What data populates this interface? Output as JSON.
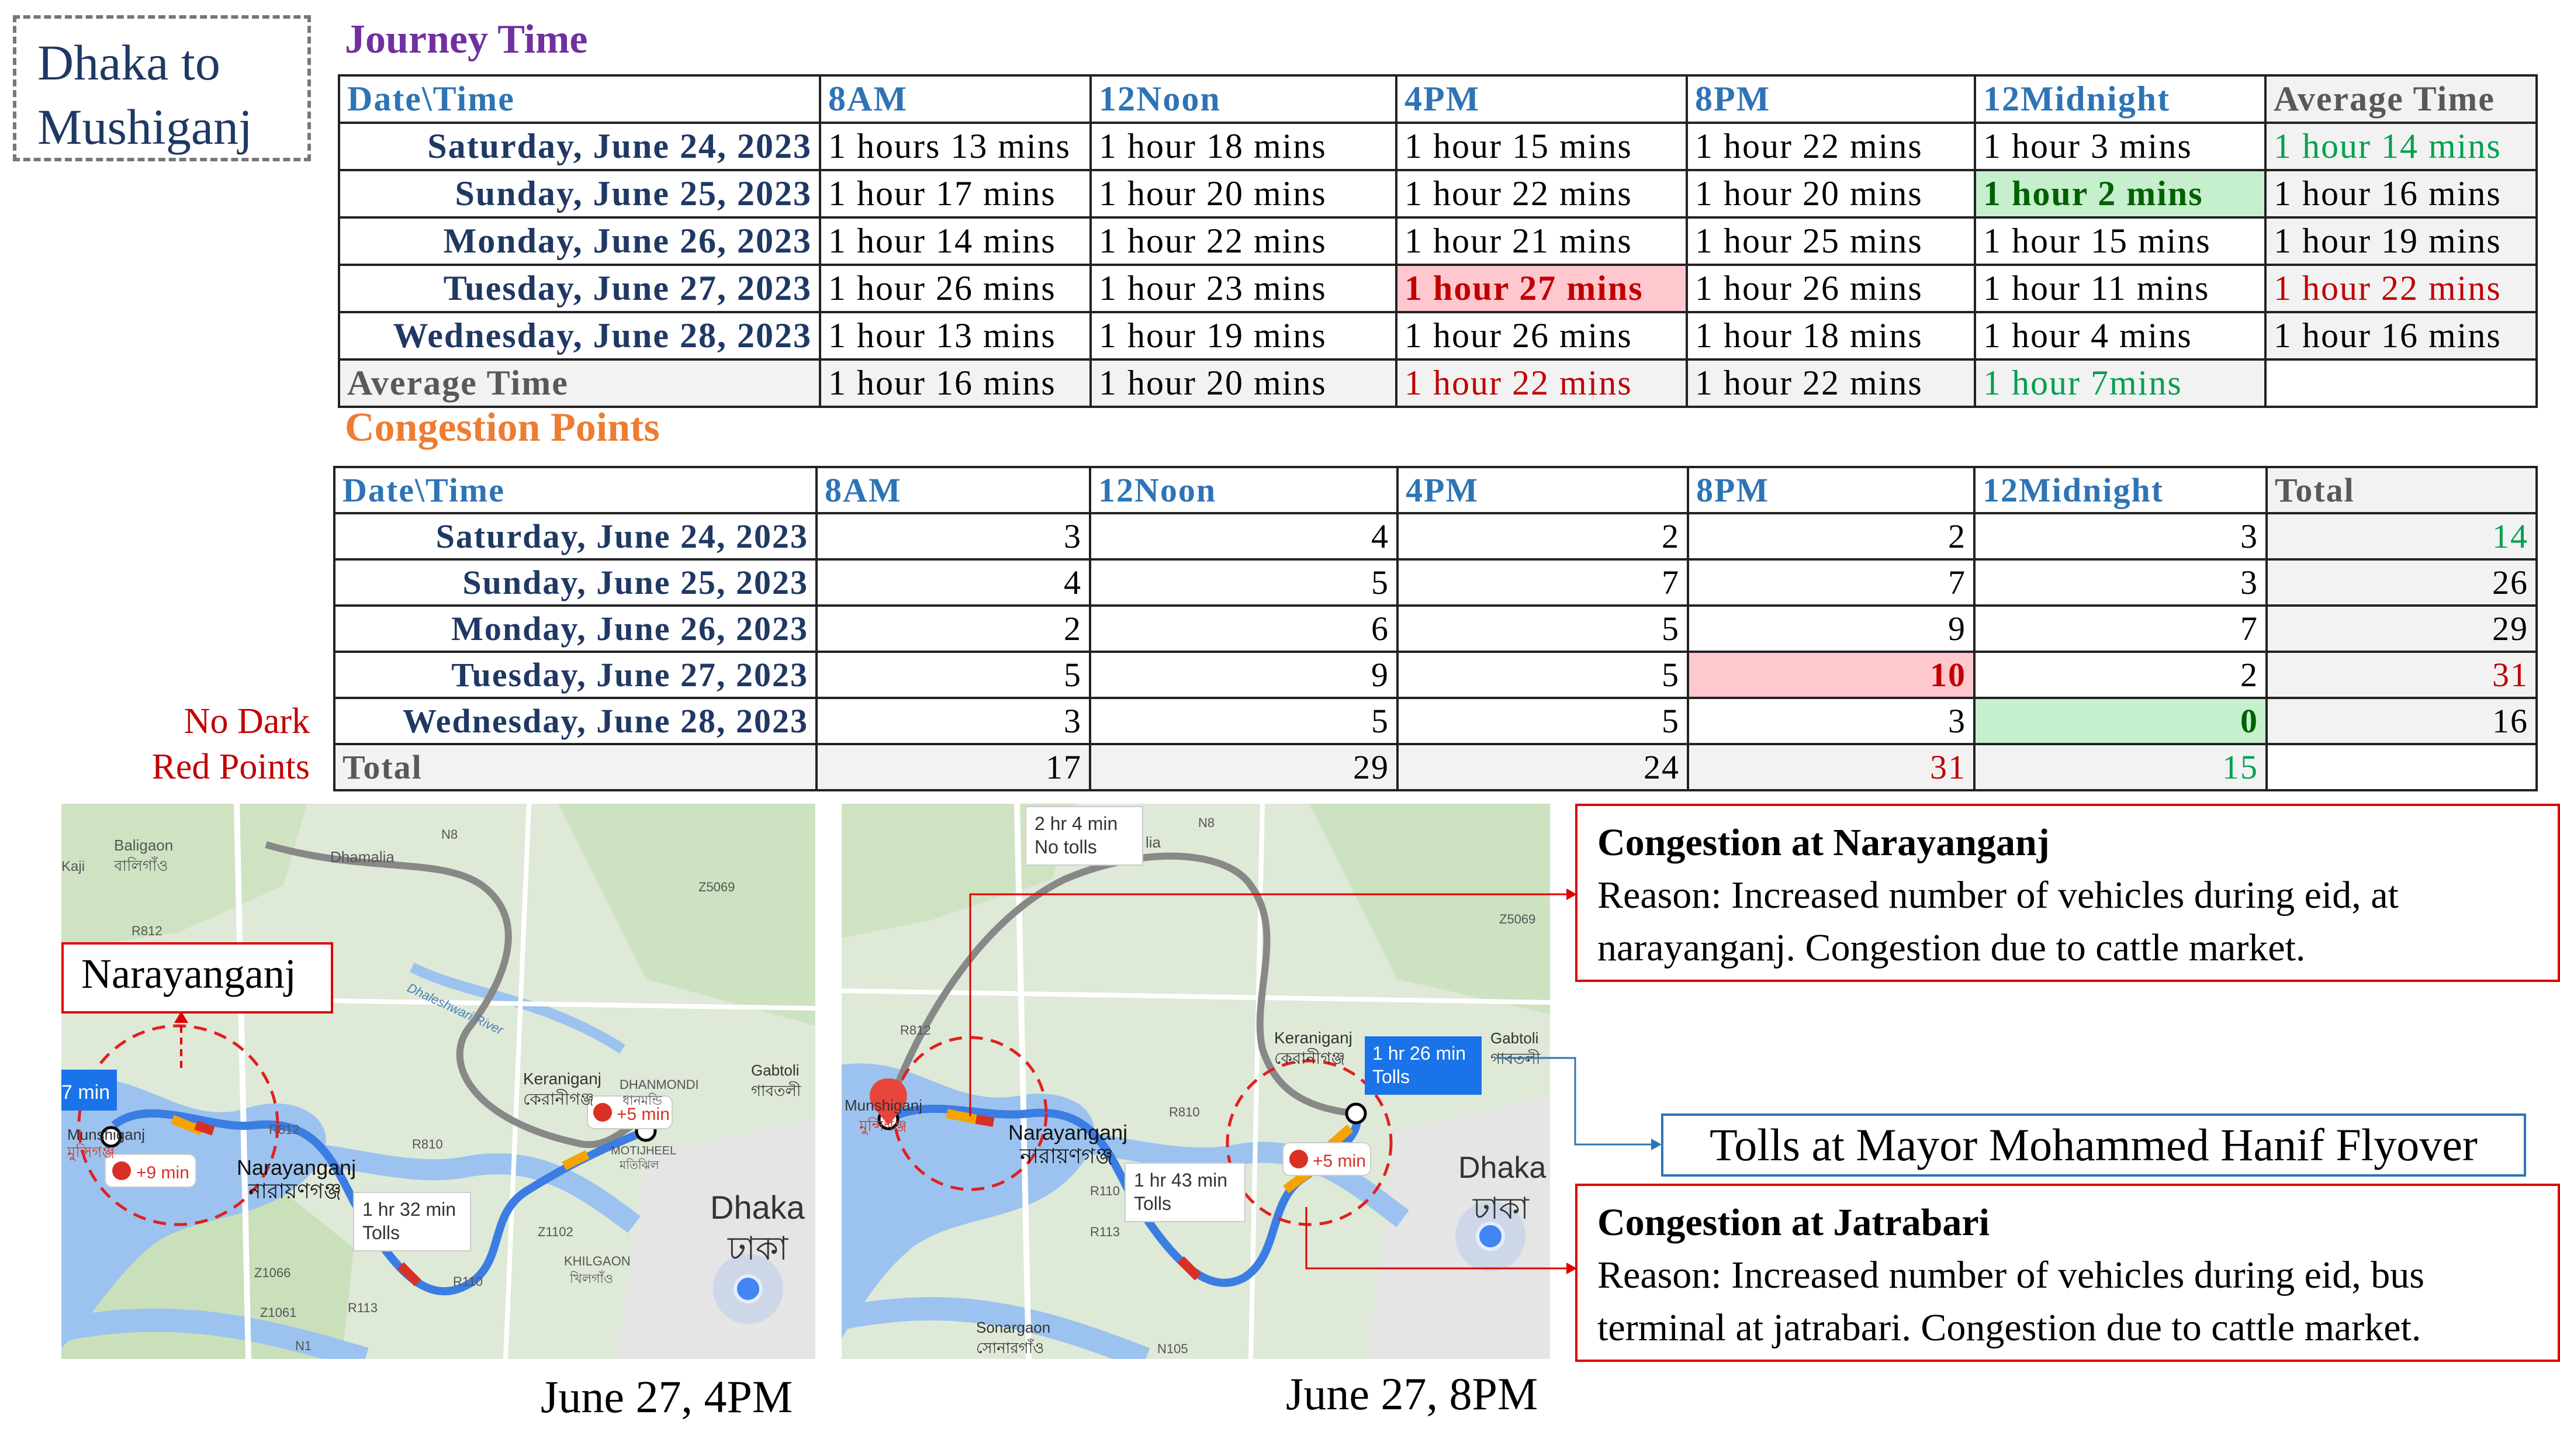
{
  "route_label": {
    "line1": "Dhaka to",
    "line2": "Mushiganj"
  },
  "journey_time": {
    "title": "Journey Time",
    "headers": [
      "Date\\Time",
      "8AM",
      "12Noon",
      "4PM",
      "8PM",
      "12Midnight",
      "Average Time"
    ],
    "rows": [
      {
        "date": "Saturday, June 24, 2023",
        "values": [
          "1 hours 13 mins",
          "1 hour 18 mins",
          "1 hour 15 mins",
          "1 hour 22 mins",
          "1 hour 3 mins",
          "1 hour 14 mins"
        ]
      },
      {
        "date": "Sunday, June 25, 2023",
        "values": [
          "1 hour 17 mins",
          "1 hour 20 mins",
          "1 hour 22 mins",
          "1 hour 20 mins",
          "1 hour 2 mins",
          "1 hour 16 mins"
        ]
      },
      {
        "date": "Monday, June 26, 2023",
        "values": [
          "1 hour 14 mins",
          "1 hour 22 mins",
          "1 hour 21 mins",
          "1 hour 25 mins",
          "1 hour 15 mins",
          "1 hour 19 mins"
        ]
      },
      {
        "date": "Tuesday, June 27, 2023",
        "values": [
          "1 hour 26 mins",
          "1 hour 23 mins",
          "1 hour 27 mins",
          "1 hour 26 mins",
          "1 hour 11 mins",
          "1 hour 22 mins"
        ]
      },
      {
        "date": "Wednesday, June 28, 2023",
        "values": [
          "1 hour 13 mins",
          "1 hour 19 mins",
          "1 hour 26 mins",
          "1 hour 18 mins",
          "1 hour 4 mins",
          "1 hour 16 mins"
        ]
      }
    ],
    "average_row": {
      "label": "Average Time",
      "values": [
        "1 hour 16 mins",
        "1 hour 20 mins",
        "1 hour 22 mins",
        "1 hour 22 mins",
        "1 hour 7mins",
        ""
      ]
    }
  },
  "congestion_points": {
    "title": "Congestion Points",
    "headers": [
      "Date\\Time",
      "8AM",
      "12Noon",
      "4PM",
      "8PM",
      "12Midnight",
      "Total"
    ],
    "rows": [
      {
        "date": "Saturday, June 24, 2023",
        "values": [
          "3",
          "4",
          "2",
          "2",
          "3",
          "14"
        ]
      },
      {
        "date": "Sunday, June 25, 2023",
        "values": [
          "4",
          "5",
          "7",
          "7",
          "3",
          "26"
        ]
      },
      {
        "date": "Monday, June 26, 2023",
        "values": [
          "2",
          "6",
          "5",
          "9",
          "7",
          "29"
        ]
      },
      {
        "date": "Tuesday, June 27, 2023",
        "values": [
          "5",
          "9",
          "5",
          "10",
          "2",
          "31"
        ]
      },
      {
        "date": "Wednesday, June 28, 2023",
        "values": [
          "3",
          "5",
          "5",
          "3",
          "0",
          "16"
        ]
      }
    ],
    "total_row": {
      "label": "Total",
      "values": [
        "17",
        "29",
        "24",
        "31",
        "15",
        ""
      ]
    }
  },
  "note": {
    "line1": "No Dark",
    "line2": "Red Points"
  },
  "map1": {
    "caption": "June 27, 4PM",
    "callout": "Narayanganj",
    "route_box": {
      "line1": "1 hr 32 min",
      "line2": "Tolls"
    },
    "delay_a": "+9 min",
    "delay_b": "+5 min",
    "side_time": "7 min",
    "labels": [
      "Baligaon",
      "বালিগাঁও",
      "Dhamalia",
      "R812",
      "Z5069",
      "N8",
      "Dhaleshwari River",
      "Keraniganj",
      "কেরানীগঞ্জ",
      "DHANMONDI",
      "ধানমন্ডি",
      "Gabtoli",
      "গাবতলী",
      "Narayanganj",
      "নারায়ণগঞ্জ",
      "Munshiganj",
      "মুন্সিগঞ্জ",
      "R810",
      "R812",
      "Dhaka",
      "ঢাকা",
      "KHILGAON",
      "খিলগাঁও",
      "R113",
      "R110",
      "Z1102",
      "Z1066",
      "Z1061",
      "N1",
      "Kaji",
      "MOTIJHEEL",
      "মতিঝিল"
    ]
  },
  "map2": {
    "caption": "June 27, 8PM",
    "route_box_top": {
      "line1": "2 hr 4 min",
      "line2": "No tolls"
    },
    "route_box_mid": {
      "line1": "1 hr 43 min",
      "line2": "Tolls"
    },
    "route_box_active": {
      "line1": "1 hr 26 min",
      "line2": "Tolls"
    },
    "delay": "+5 min",
    "labels": [
      "N8",
      "Z5069",
      "R812",
      "Keraniganj",
      "কেরানীগঞ্জ",
      "Gabtoli",
      "গাবতলী",
      "Narayanganj",
      "নারায়ণগঞ্জ",
      "Munshiganj",
      "মুন্সিগঞ্জ",
      "R810",
      "R110",
      "R113",
      "Dhaka",
      "ঢাকা",
      "Sonargaon",
      "সোনারগাঁও",
      "N105",
      "lia"
    ]
  },
  "callouts": {
    "narayanganj": {
      "title": "Congestion at Narayanganj",
      "line1": "Reason: Increased number of vehicles during eid, at",
      "line2": "narayanganj. Congestion due to cattle market."
    },
    "tolls": "Tolls at Mayor Mohammed Hanif Flyover",
    "jatrabari": {
      "title": "Congestion at Jatrabari",
      "line1": "Reason: Increased number of vehicles during eid, bus",
      "line2": "terminal at jatrabari. Congestion due to cattle market."
    }
  },
  "colors": {
    "header_blue": "#2e74b5",
    "date_navy": "#1f3864",
    "title_purple": "#7030a0",
    "title_orange": "#ed7d31",
    "red": "#c00000",
    "green": "#00a050",
    "map_route": "#4285f4"
  }
}
